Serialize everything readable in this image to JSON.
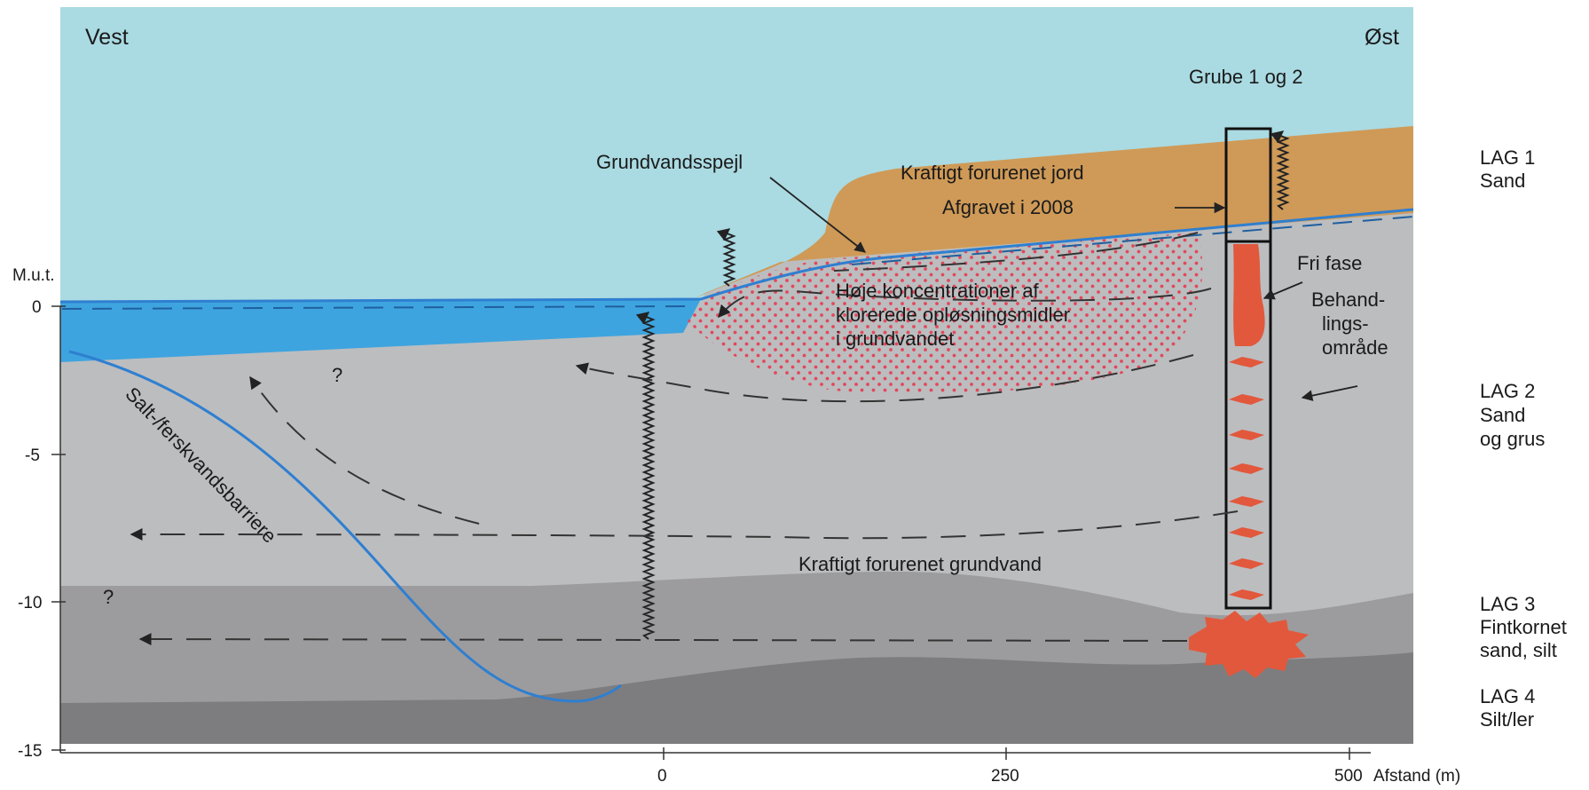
{
  "diagram": {
    "headers": {
      "west": "Vest",
      "east": "Øst"
    },
    "y_axis": {
      "unit": "M.u.t.",
      "ticks": [
        "0",
        "-5",
        "-10",
        "-15"
      ]
    },
    "x_axis": {
      "label": "Afstand (m)",
      "ticks": [
        "0",
        "250",
        "500"
      ]
    },
    "labels": {
      "pit": "Grube 1 og 2",
      "water_table": "Grundvandsspejl",
      "soil_1": "Kraftigt forurenet jord",
      "soil_2": "Afgravet i 2008",
      "free_phase": "Fri fase",
      "treatment_1": "Behand-",
      "treatment_2": "lings-",
      "treatment_3": "område",
      "plume_1": "Høje koncentrationer af",
      "plume_2": "klorerede opløsningsmidler",
      "plume_3": "i grundvandet",
      "barrier": "Salt-/ferskvandsbarriere",
      "groundwater": "Kraftigt forurenet grundvand",
      "question": "?"
    },
    "layers": [
      {
        "name": "LAG 1",
        "desc": [
          "Sand"
        ]
      },
      {
        "name": "LAG 2",
        "desc": [
          "Sand",
          "og grus"
        ]
      },
      {
        "name": "LAG 3",
        "desc": [
          "Fintkornet",
          "sand, silt"
        ]
      },
      {
        "name": "LAG 4",
        "desc": [
          "Silt/ler"
        ]
      }
    ],
    "colors": {
      "sky": "#aadae2",
      "water": "#3ea4df",
      "layer1": "#cf9a57",
      "layer2": "#bcbdbf",
      "layer3": "#9c9c9e",
      "layer4": "#7d7d7f",
      "contamination": "#e2583c",
      "water_table": "#2f7fd0"
    }
  }
}
